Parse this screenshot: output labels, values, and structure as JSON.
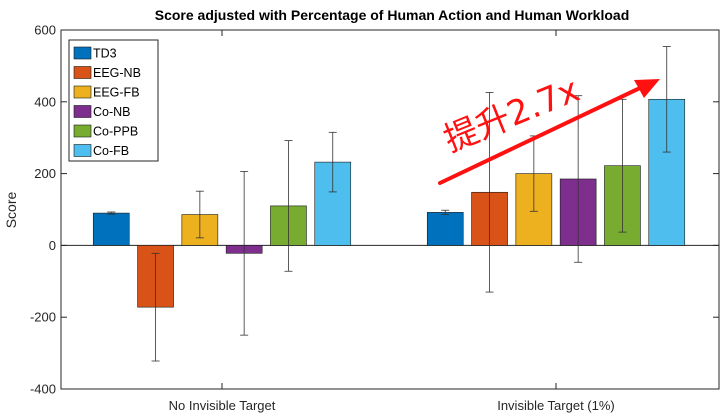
{
  "chart_data": {
    "type": "bar",
    "title": "Score adjusted with Percentage of Human Action and Human Workload",
    "ylabel": "Score",
    "xlabel": "",
    "ylim": [
      -400,
      600
    ],
    "yticks": [
      -400,
      -200,
      0,
      200,
      400,
      600
    ],
    "grid": false,
    "legend_position": "top-left",
    "categories": [
      "No Invisible Target",
      "Invisible Target (1%)"
    ],
    "series": [
      {
        "name": "TD3",
        "color": "#0072BD",
        "values": [
          90,
          92
        ],
        "errors": [
          3,
          6
        ]
      },
      {
        "name": "EEG-NB",
        "color": "#D95319",
        "values": [
          -172,
          148
        ],
        "errors": [
          150,
          278
        ]
      },
      {
        "name": "EEG-FB",
        "color": "#EDB120",
        "values": [
          86,
          200
        ],
        "errors": [
          65,
          105
        ]
      },
      {
        "name": "Co-NB",
        "color": "#7E2F8E",
        "values": [
          -22,
          185
        ],
        "errors": [
          228,
          232
        ]
      },
      {
        "name": "Co-PPB",
        "color": "#77AC30",
        "values": [
          110,
          222
        ],
        "errors": [
          182,
          185
        ]
      },
      {
        "name": "Co-FB",
        "color": "#4DBEEE",
        "values": [
          232,
          407
        ],
        "errors": [
          83,
          147
        ]
      }
    ],
    "annotation": {
      "text": "提升2.7x",
      "color": "#ff1111"
    }
  }
}
